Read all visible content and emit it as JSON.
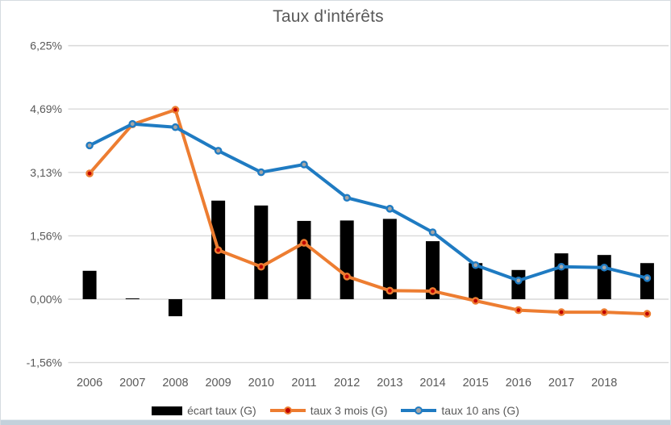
{
  "chart_data": {
    "type": "combo",
    "title": "Taux d'intérêts",
    "categories": [
      "2006",
      "2007",
      "2008",
      "2009",
      "2010",
      "2011",
      "2012",
      "2013",
      "2014",
      "2015",
      "2016",
      "2017",
      "2018",
      ""
    ],
    "series": [
      {
        "name": "écart taux (G)",
        "type": "bar",
        "color": "#000000",
        "values": [
          0.7,
          0.02,
          -0.42,
          2.43,
          2.31,
          1.93,
          1.94,
          1.98,
          1.43,
          0.89,
          0.72,
          1.13,
          1.09,
          0.89
        ]
      },
      {
        "name": "taux 3 mois (G)",
        "type": "line",
        "color": "#ED7D31",
        "marker_color": "#C00000",
        "values": [
          3.1,
          4.31,
          4.67,
          1.21,
          0.8,
          1.39,
          0.56,
          0.21,
          0.2,
          -0.04,
          -0.27,
          -0.32,
          -0.32,
          -0.36
        ]
      },
      {
        "name": "taux 10 ans (G)",
        "type": "line",
        "color": "#1F7BC2",
        "marker_color": "#A6A6A6",
        "values": [
          3.79,
          4.32,
          4.24,
          3.66,
          3.13,
          3.32,
          2.5,
          2.23,
          1.65,
          0.84,
          0.46,
          0.8,
          0.78,
          0.52
        ]
      }
    ],
    "y_axis": {
      "tick_labels": [
        "6,25%",
        "4,69%",
        "3,13%",
        "1,56%",
        "0,00%",
        "-1,56%"
      ],
      "tick_values": [
        6.25,
        4.6875,
        3.125,
        1.5625,
        0,
        -1.5625
      ],
      "min": -1.5625,
      "max": 6.25
    },
    "grid": true,
    "legend_position": "bottom"
  },
  "legend": {
    "items": [
      {
        "label": "écart taux (G)"
      },
      {
        "label": "taux 3 mois (G)"
      },
      {
        "label": "taux 10 ans (G)"
      }
    ]
  },
  "colors": {
    "grid": "#D9D9D9",
    "axis_text": "#595959",
    "bar": "#000000",
    "line_3m": "#ED7D31",
    "marker_3m": "#C00000",
    "line_10y": "#1F7BC2",
    "marker_10y": "#A6A6A6",
    "bottom_strip": "#c3d1db"
  }
}
